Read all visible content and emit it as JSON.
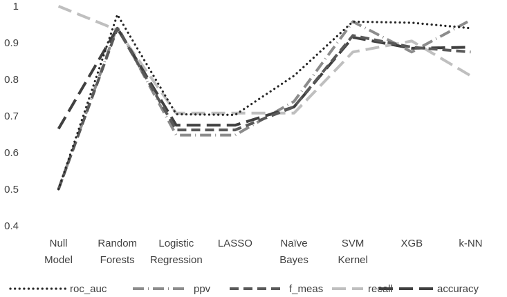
{
  "chart_data": {
    "type": "line",
    "title": "",
    "xlabel": "",
    "ylabel": "",
    "categories": [
      [
        "Null",
        "Model"
      ],
      [
        "Random",
        "Forests"
      ],
      [
        "Logistic",
        "Regression"
      ],
      [
        "LASSO"
      ],
      [
        "Naïve",
        "Bayes"
      ],
      [
        "SVM",
        "Kernel"
      ],
      [
        "XGB"
      ],
      [
        "k-NN"
      ]
    ],
    "ylim": [
      0.4,
      1.0
    ],
    "yticks": [
      0.4,
      0.5,
      0.6,
      0.7,
      0.8,
      0.9,
      1
    ],
    "ytick_labels": [
      "0.4",
      "0.5",
      "0.6",
      "0.7",
      "0.8",
      "0.9",
      "1"
    ],
    "grid": false,
    "legend_position": "bottom",
    "series": [
      {
        "name": "roc_auc",
        "color": "#262626",
        "style": "dotted",
        "values": [
          0.5,
          0.977,
          0.705,
          0.703,
          0.81,
          0.958,
          0.955,
          0.94
        ]
      },
      {
        "name": "ppv",
        "color": "#8c8c8c",
        "style": "dashdot",
        "values": [
          0.5,
          0.945,
          0.648,
          0.648,
          0.74,
          0.958,
          0.875,
          0.962
        ]
      },
      {
        "name": "f_meas",
        "color": "#595959",
        "style": "dashed",
        "values": [
          0.5,
          0.94,
          0.662,
          0.662,
          0.725,
          0.92,
          0.888,
          0.875
        ]
      },
      {
        "name": "recall",
        "color": "#bfbfbf",
        "style": "longdash",
        "values": [
          1.0,
          0.935,
          0.708,
          0.708,
          0.708,
          0.875,
          0.905,
          0.81
        ]
      },
      {
        "name": "accuracy",
        "color": "#404040",
        "style": "longdash",
        "values": [
          0.665,
          0.94,
          0.675,
          0.675,
          0.725,
          0.915,
          0.885,
          0.888
        ]
      }
    ]
  }
}
